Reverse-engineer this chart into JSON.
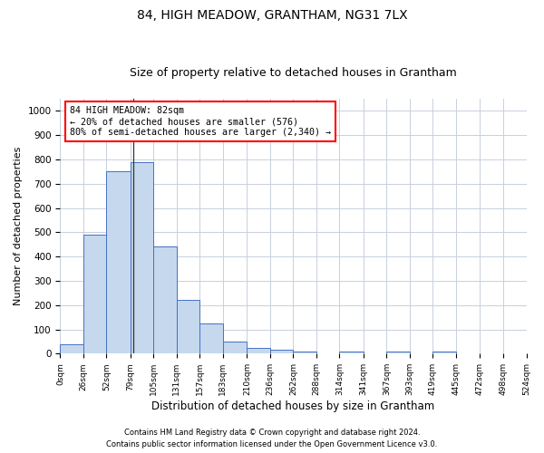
{
  "title1": "84, HIGH MEADOW, GRANTHAM, NG31 7LX",
  "title2": "Size of property relative to detached houses in Grantham",
  "xlabel": "Distribution of detached houses by size in Grantham",
  "ylabel": "Number of detached properties",
  "bar_edges": [
    0,
    26,
    52,
    79,
    105,
    131,
    157,
    183,
    210,
    236,
    262,
    288,
    314,
    341,
    367,
    393,
    419,
    445,
    472,
    498,
    524
  ],
  "bar_values": [
    40,
    490,
    750,
    790,
    440,
    220,
    125,
    50,
    25,
    15,
    10,
    0,
    8,
    0,
    8,
    0,
    8,
    0,
    0,
    0
  ],
  "bar_color": "#c5d8ed",
  "bar_edge_color": "#4472c4",
  "property_size": 82,
  "vline_color": "#333333",
  "annotation_line1": "84 HIGH MEADOW: 82sqm",
  "annotation_line2": "← 20% of detached houses are smaller (576)",
  "annotation_line3": "80% of semi-detached houses are larger (2,340) →",
  "annotation_box_color": "white",
  "annotation_box_edge_color": "red",
  "ylim": [
    0,
    1050
  ],
  "yticks": [
    0,
    100,
    200,
    300,
    400,
    500,
    600,
    700,
    800,
    900,
    1000
  ],
  "tick_labels": [
    "0sqm",
    "26sqm",
    "52sqm",
    "79sqm",
    "105sqm",
    "131sqm",
    "157sqm",
    "183sqm",
    "210sqm",
    "236sqm",
    "262sqm",
    "288sqm",
    "314sqm",
    "341sqm",
    "367sqm",
    "393sqm",
    "419sqm",
    "445sqm",
    "472sqm",
    "498sqm",
    "524sqm"
  ],
  "footer1": "Contains HM Land Registry data © Crown copyright and database right 2024.",
  "footer2": "Contains public sector information licensed under the Open Government Licence v3.0.",
  "background_color": "#ffffff",
  "grid_color": "#c8d0dc",
  "title1_fontsize": 10,
  "title2_fontsize": 9,
  "ylabel_fontsize": 8,
  "xlabel_fontsize": 8.5
}
